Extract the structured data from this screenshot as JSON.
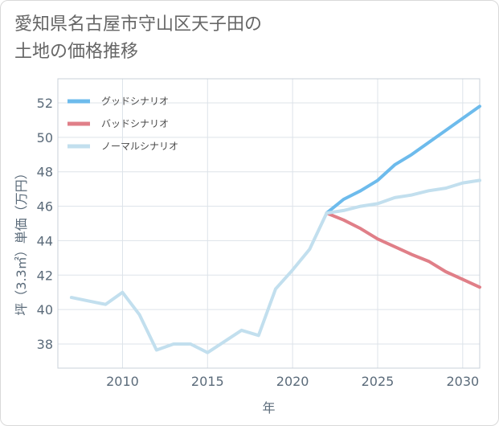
{
  "title": {
    "line1": "愛知県名古屋市守山区天子田の",
    "line2": "土地の価格推移"
  },
  "chart_data": {
    "type": "line",
    "xlabel": "年",
    "ylabel": "坪（3.3㎡）単価（万円）",
    "xlim": [
      2006.2,
      2031
    ],
    "ylim": [
      36.6,
      53.4
    ],
    "xticks": [
      2010,
      2015,
      2020,
      2025,
      2030
    ],
    "yticks": [
      38,
      40,
      42,
      44,
      46,
      48,
      50,
      52
    ],
    "grid": true,
    "legend_position": "top-left",
    "series": [
      {
        "name": "グッドシナリオ",
        "color": "#6dbbec",
        "x": [
          2022,
          2023,
          2024,
          2025,
          2026,
          2027,
          2028,
          2029,
          2030,
          2031
        ],
        "y": [
          45.6,
          46.4,
          46.9,
          47.5,
          48.4,
          49.0,
          49.7,
          50.4,
          51.1,
          51.8
        ]
      },
      {
        "name": "バッドシナリオ",
        "color": "#e07f88",
        "x": [
          2022,
          2023,
          2024,
          2025,
          2026,
          2027,
          2028,
          2029,
          2030,
          2031
        ],
        "y": [
          45.6,
          45.2,
          44.7,
          44.1,
          43.65,
          43.2,
          42.8,
          42.2,
          41.75,
          41.3
        ]
      },
      {
        "name": "ノーマルシナリオ",
        "color": "#c2dfee",
        "x": [
          2007,
          2008,
          2009,
          2010,
          2011,
          2012,
          2013,
          2014,
          2015,
          2016,
          2017,
          2018,
          2019,
          2020,
          2021,
          2022,
          2023,
          2024,
          2025,
          2026,
          2027,
          2028,
          2029,
          2030,
          2031
        ],
        "y": [
          40.7,
          40.5,
          40.3,
          41.0,
          39.7,
          37.65,
          38.0,
          38.0,
          37.5,
          38.15,
          38.8,
          38.5,
          41.2,
          42.3,
          43.5,
          45.6,
          45.75,
          46.0,
          46.15,
          46.5,
          46.65,
          46.9,
          47.05,
          47.35,
          47.5
        ]
      }
    ]
  }
}
